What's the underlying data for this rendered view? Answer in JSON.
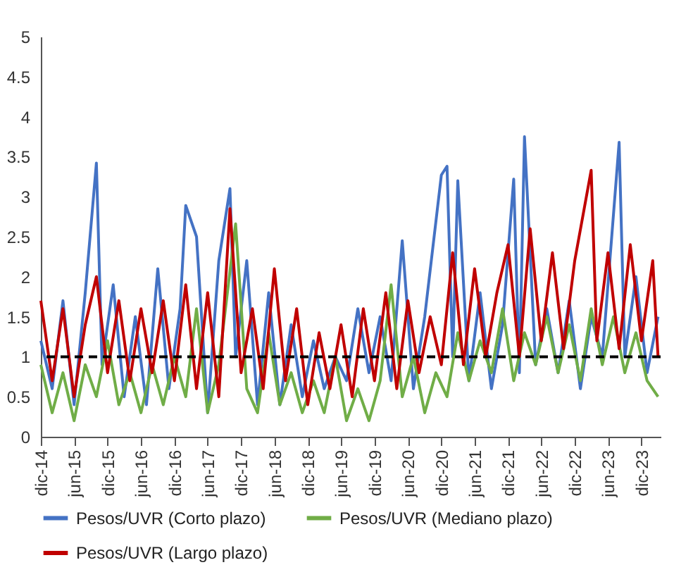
{
  "chart_data": {
    "type": "line",
    "xlim": [
      "2014-12-01",
      "2024-03-15"
    ],
    "xticks": [
      {
        "value": "2014-12-01",
        "label": "dic-14"
      },
      {
        "value": "2015-06-01",
        "label": "jun-15"
      },
      {
        "value": "2015-12-01",
        "label": "dic-15"
      },
      {
        "value": "2016-06-01",
        "label": "jun-16"
      },
      {
        "value": "2016-12-01",
        "label": "dic-16"
      },
      {
        "value": "2017-06-01",
        "label": "jun-17"
      },
      {
        "value": "2017-12-01",
        "label": "dic-17"
      },
      {
        "value": "2018-06-01",
        "label": "jun-18"
      },
      {
        "value": "2018-12-01",
        "label": "dic-18"
      },
      {
        "value": "2019-06-01",
        "label": "jun-19"
      },
      {
        "value": "2019-12-01",
        "label": "dic-19"
      },
      {
        "value": "2020-06-01",
        "label": "jun-20"
      },
      {
        "value": "2020-12-01",
        "label": "dic-20"
      },
      {
        "value": "2021-06-01",
        "label": "jun-21"
      },
      {
        "value": "2021-12-01",
        "label": "dic-21"
      },
      {
        "value": "2022-06-01",
        "label": "jun-22"
      },
      {
        "value": "2022-12-01",
        "label": "dic-22"
      },
      {
        "value": "2023-06-01",
        "label": "jun-23"
      },
      {
        "value": "2023-12-01",
        "label": "dic-23"
      }
    ],
    "ylim": [
      0,
      5
    ],
    "yticks": [
      0,
      0.5,
      1,
      1.5,
      2,
      2.5,
      3,
      3.5,
      4,
      4.5,
      5
    ],
    "grid": false,
    "legend": "bottom",
    "line_style": "solid",
    "marker": "none",
    "ref_lines": [
      {
        "axis": "y",
        "value": 1,
        "color": "#000000",
        "line_style": "dashed"
      }
    ],
    "series": [
      {
        "name": "Pesos/UVR (Corto plazo)",
        "color": "#4472c4",
        "x": [
          "2014-12",
          "2015-02",
          "2015-04",
          "2015-06",
          "2015-08",
          "2015-10",
          "2015-11",
          "2016-01",
          "2016-03",
          "2016-05",
          "2016-07",
          "2016-09",
          "2016-11",
          "2017-01",
          "2017-02",
          "2017-04",
          "2017-06",
          "2017-08",
          "2017-10",
          "2017-11",
          "2018-01",
          "2018-03",
          "2018-05",
          "2018-07",
          "2018-09",
          "2018-11",
          "2019-01",
          "2019-03",
          "2019-05",
          "2019-07",
          "2019-09",
          "2019-11",
          "2020-01",
          "2020-03",
          "2020-05",
          "2020-07",
          "2020-09",
          "2020-12",
          "2021-01",
          "2021-02",
          "2021-03",
          "2021-05",
          "2021-07",
          "2021-09",
          "2021-11",
          "2022-01",
          "2022-02",
          "2022-03",
          "2022-05",
          "2022-07",
          "2022-09",
          "2022-11",
          "2023-01",
          "2023-03",
          "2023-05",
          "2023-08",
          "2023-09",
          "2023-11",
          "2024-01",
          "2024-03"
        ],
        "values": [
          1.2,
          0.6,
          1.7,
          0.4,
          1.8,
          3.42,
          0.9,
          1.9,
          0.5,
          1.5,
          0.4,
          2.1,
          0.6,
          1.6,
          2.89,
          2.5,
          0.3,
          2.2,
          3.1,
          1.0,
          2.2,
          0.4,
          1.8,
          0.4,
          1.4,
          0.5,
          1.2,
          0.6,
          1.0,
          0.7,
          1.6,
          0.8,
          1.5,
          0.7,
          2.45,
          0.6,
          1.5,
          3.27,
          3.38,
          1.0,
          3.2,
          0.7,
          1.8,
          0.6,
          1.4,
          3.22,
          0.8,
          3.75,
          0.9,
          1.6,
          0.8,
          1.7,
          0.6,
          1.5,
          1.0,
          3.68,
          1.0,
          2.0,
          0.8,
          1.5
        ]
      },
      {
        "name": "Pesos/UVR (Mediano plazo)",
        "color": "#70ad47",
        "x": [
          "2014-12",
          "2015-02",
          "2015-04",
          "2015-06",
          "2015-08",
          "2015-10",
          "2015-12",
          "2016-02",
          "2016-04",
          "2016-06",
          "2016-08",
          "2016-10",
          "2016-12",
          "2017-02",
          "2017-04",
          "2017-06",
          "2017-08",
          "2017-11",
          "2018-01",
          "2018-03",
          "2018-05",
          "2018-07",
          "2018-09",
          "2018-11",
          "2019-01",
          "2019-03",
          "2019-05",
          "2019-07",
          "2019-09",
          "2019-11",
          "2020-01",
          "2020-03",
          "2020-05",
          "2020-07",
          "2020-09",
          "2020-11",
          "2021-01",
          "2021-03",
          "2021-05",
          "2021-07",
          "2021-09",
          "2021-11",
          "2022-01",
          "2022-03",
          "2022-05",
          "2022-07",
          "2022-09",
          "2022-11",
          "2023-01",
          "2023-03",
          "2023-05",
          "2023-07",
          "2023-09",
          "2023-11",
          "2024-01",
          "2024-03"
        ],
        "values": [
          0.9,
          0.3,
          0.8,
          0.2,
          0.9,
          0.5,
          1.2,
          0.4,
          0.8,
          0.3,
          0.9,
          0.4,
          1.0,
          0.5,
          1.6,
          0.3,
          0.9,
          2.66,
          0.6,
          0.3,
          1.3,
          0.4,
          0.8,
          0.3,
          0.7,
          0.3,
          1.0,
          0.2,
          0.6,
          0.2,
          0.7,
          1.9,
          0.5,
          1.0,
          0.3,
          0.8,
          0.5,
          1.3,
          0.7,
          1.2,
          0.8,
          1.6,
          0.7,
          1.3,
          0.9,
          1.5,
          0.8,
          1.4,
          0.7,
          1.6,
          0.9,
          1.5,
          0.8,
          1.3,
          0.7,
          0.5
        ]
      },
      {
        "name": "Pesos/UVR (Largo plazo)",
        "color": "#c00000",
        "x": [
          "2014-12",
          "2015-02",
          "2015-04",
          "2015-06",
          "2015-08",
          "2015-10",
          "2015-12",
          "2016-02",
          "2016-04",
          "2016-06",
          "2016-08",
          "2016-10",
          "2016-12",
          "2017-02",
          "2017-04",
          "2017-06",
          "2017-08",
          "2017-10",
          "2017-12",
          "2018-02",
          "2018-04",
          "2018-06",
          "2018-08",
          "2018-10",
          "2018-12",
          "2019-02",
          "2019-04",
          "2019-06",
          "2019-08",
          "2019-10",
          "2019-12",
          "2020-02",
          "2020-04",
          "2020-06",
          "2020-08",
          "2020-10",
          "2020-12",
          "2021-02",
          "2021-04",
          "2021-06",
          "2021-08",
          "2021-10",
          "2021-12",
          "2022-02",
          "2022-04",
          "2022-06",
          "2022-08",
          "2022-10",
          "2022-12",
          "2023-03",
          "2023-04",
          "2023-06",
          "2023-08",
          "2023-10",
          "2023-12",
          "2024-02",
          "2024-03"
        ],
        "values": [
          1.7,
          0.7,
          1.6,
          0.5,
          1.4,
          2.0,
          0.8,
          1.7,
          0.7,
          1.6,
          0.8,
          1.7,
          0.7,
          1.9,
          0.6,
          1.8,
          0.5,
          2.85,
          0.8,
          1.6,
          0.6,
          2.1,
          0.7,
          1.6,
          0.4,
          1.3,
          0.6,
          1.4,
          0.5,
          1.6,
          0.7,
          1.8,
          0.6,
          1.7,
          0.8,
          1.5,
          0.9,
          2.3,
          0.9,
          2.1,
          1.0,
          1.8,
          2.4,
          1.0,
          2.6,
          1.2,
          2.3,
          1.1,
          2.2,
          3.33,
          1.2,
          2.3,
          1.1,
          2.4,
          1.2,
          2.2,
          1.0
        ]
      }
    ]
  }
}
